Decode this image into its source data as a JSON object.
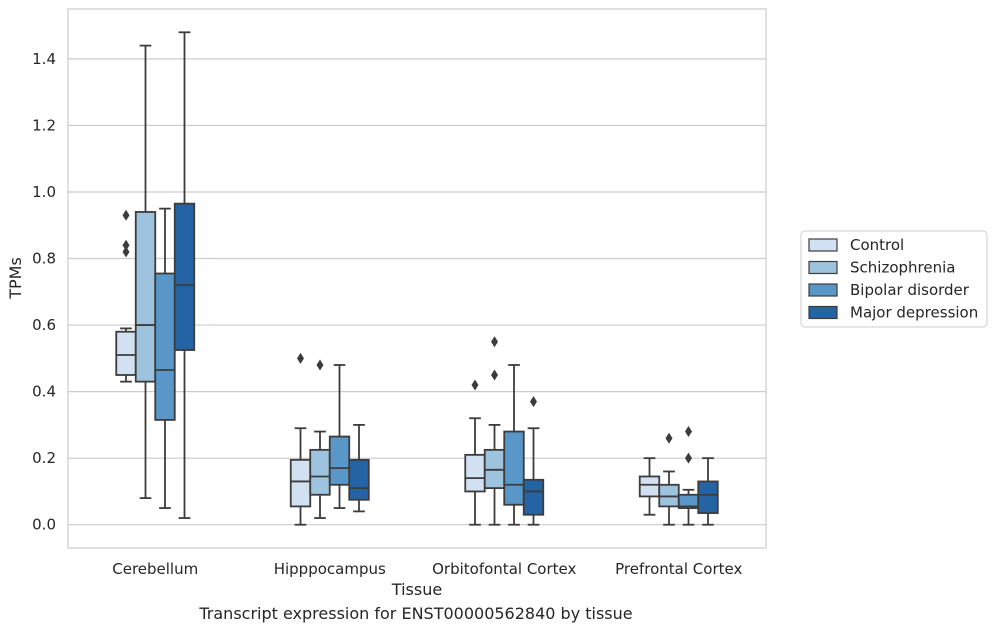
{
  "caption": "Transcript expression for ENST00000562840 by tissue",
  "chart_data": {
    "type": "boxplot",
    "xlabel": "Tissue",
    "ylabel": "TPMs",
    "ylim": [
      -0.07,
      1.55
    ],
    "yticks": [
      0.0,
      0.2,
      0.4,
      0.6,
      0.8,
      1.0,
      1.2,
      1.4
    ],
    "ytick_labels": [
      "0.0",
      "0.2",
      "0.4",
      "0.6",
      "0.8",
      "1.0",
      "1.2",
      "1.4"
    ],
    "grid": "horizontal",
    "legend_position": "right",
    "categories": [
      "Cerebellum",
      "Hipppocampus",
      "Orbitofontal Cortex",
      "Prefrontal Cortex"
    ],
    "series": [
      {
        "name": "Control",
        "color": "#d1e1f1",
        "boxes": [
          {
            "whislo": 0.43,
            "q1": 0.45,
            "med": 0.51,
            "q3": 0.58,
            "whishi": 0.59,
            "fliers": [
              0.82,
              0.84,
              0.93
            ]
          },
          {
            "whislo": 0.0,
            "q1": 0.055,
            "med": 0.13,
            "q3": 0.195,
            "whishi": 0.29,
            "fliers": [
              0.5
            ]
          },
          {
            "whislo": 0.0,
            "q1": 0.1,
            "med": 0.14,
            "q3": 0.21,
            "whishi": 0.32,
            "fliers": [
              0.42
            ]
          },
          {
            "whislo": 0.03,
            "q1": 0.085,
            "med": 0.12,
            "q3": 0.145,
            "whishi": 0.2,
            "fliers": []
          }
        ]
      },
      {
        "name": "Schizophrenia",
        "color": "#9dc3df",
        "boxes": [
          {
            "whislo": 0.08,
            "q1": 0.43,
            "med": 0.6,
            "q3": 0.94,
            "whishi": 1.44,
            "fliers": []
          },
          {
            "whislo": 0.02,
            "q1": 0.09,
            "med": 0.145,
            "q3": 0.225,
            "whishi": 0.28,
            "fliers": [
              0.48
            ]
          },
          {
            "whislo": 0.0,
            "q1": 0.11,
            "med": 0.165,
            "q3": 0.225,
            "whishi": 0.3,
            "fliers": [
              0.45,
              0.55
            ]
          },
          {
            "whislo": 0.0,
            "q1": 0.055,
            "med": 0.085,
            "q3": 0.12,
            "whishi": 0.16,
            "fliers": [
              0.26
            ]
          }
        ]
      },
      {
        "name": "Bipolar disorder",
        "color": "#5897c8",
        "boxes": [
          {
            "whislo": 0.05,
            "q1": 0.315,
            "med": 0.465,
            "q3": 0.755,
            "whishi": 0.95,
            "fliers": []
          },
          {
            "whislo": 0.05,
            "q1": 0.12,
            "med": 0.17,
            "q3": 0.265,
            "whishi": 0.48,
            "fliers": []
          },
          {
            "whislo": 0.0,
            "q1": 0.06,
            "med": 0.12,
            "q3": 0.28,
            "whishi": 0.48,
            "fliers": []
          },
          {
            "whislo": 0.0,
            "q1": 0.05,
            "med": 0.055,
            "q3": 0.09,
            "whishi": 0.105,
            "fliers": [
              0.2,
              0.28
            ]
          }
        ]
      },
      {
        "name": "Major depression",
        "color": "#2464a4",
        "boxes": [
          {
            "whislo": 0.02,
            "q1": 0.525,
            "med": 0.72,
            "q3": 0.965,
            "whishi": 1.48,
            "fliers": []
          },
          {
            "whislo": 0.04,
            "q1": 0.075,
            "med": 0.11,
            "q3": 0.195,
            "whishi": 0.3,
            "fliers": []
          },
          {
            "whislo": 0.0,
            "q1": 0.03,
            "med": 0.1,
            "q3": 0.135,
            "whishi": 0.29,
            "fliers": [
              0.37
            ]
          },
          {
            "whislo": 0.0,
            "q1": 0.035,
            "med": 0.09,
            "q3": 0.13,
            "whishi": 0.2,
            "fliers": []
          }
        ]
      }
    ]
  }
}
